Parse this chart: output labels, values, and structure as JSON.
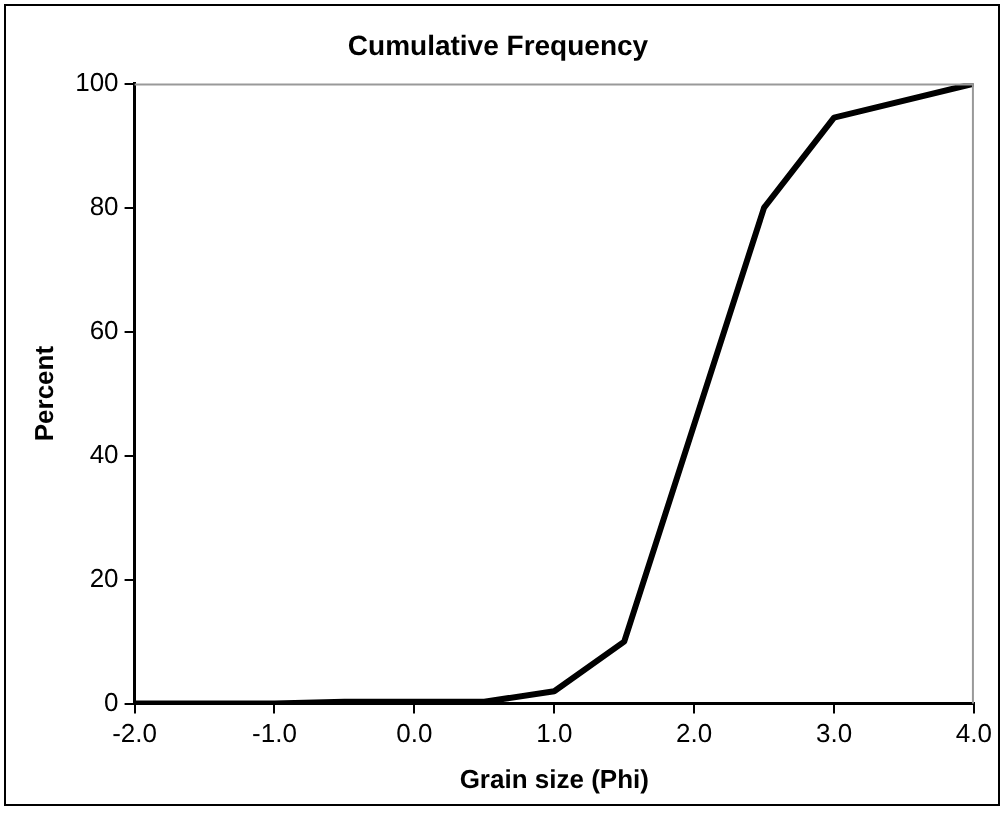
{
  "chart_data": {
    "type": "line",
    "title": "Cumulative Frequency",
    "xlabel": "Grain size (Phi)",
    "ylabel": "Percent",
    "x": [
      -2,
      -1,
      -0.5,
      0,
      0.5,
      1,
      1.5,
      2.5,
      3,
      4
    ],
    "series": [
      {
        "color": "#000000",
        "values": [
          0,
          0,
          0.3,
          0.3,
          0.3,
          2,
          10,
          80,
          94.5,
          100
        ]
      }
    ],
    "xlim": [
      -2,
      4
    ],
    "xticks": [
      {
        "value": -2,
        "label": "-2.0"
      },
      {
        "value": -1,
        "label": "-1.0"
      },
      {
        "value": 0,
        "label": "0.0"
      },
      {
        "value": 1,
        "label": "1.0"
      },
      {
        "value": 2,
        "label": "2.0"
      },
      {
        "value": 3,
        "label": "3.0"
      },
      {
        "value": 4,
        "label": "4.0"
      }
    ],
    "ylim": [
      0,
      100
    ],
    "yticks": [
      0,
      20,
      40,
      60,
      80,
      100
    ],
    "grid": false,
    "legend": false,
    "marker": "none",
    "line_style": "solid"
  }
}
